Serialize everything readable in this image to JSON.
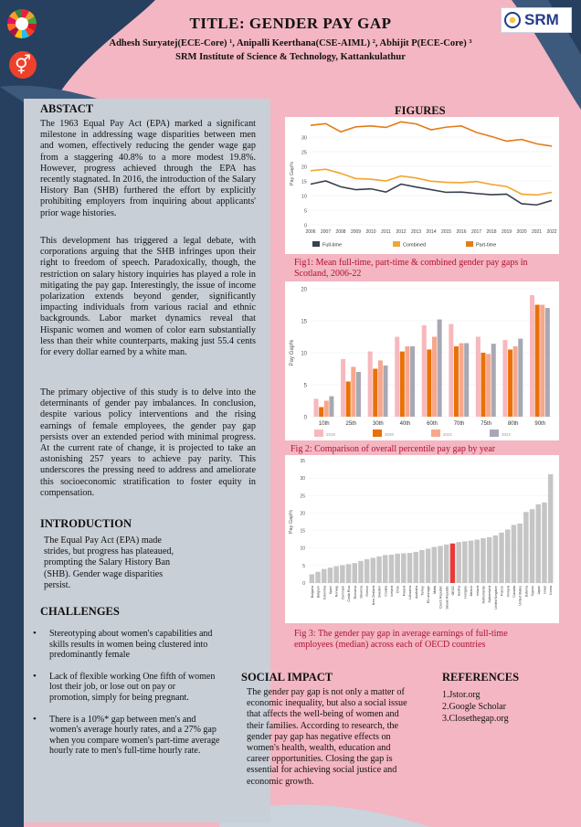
{
  "header": {
    "title": "TITLE: GENDER PAY GAP",
    "authors": "Adhesh Suryatej(ECE-Core) ¹, Anipalli Keerthana(CSE-AIML) ², Abhijit P(ECE-Core) ³",
    "institute": "SRM Institute of Science & Technology, Kattankulathur",
    "logo_text": "SRM",
    "sdg_symbol": "⚥"
  },
  "abstract": {
    "heading": "ABSTACT",
    "p1": "The 1963 Equal Pay Act (EPA) marked a significant milestone in addressing wage disparities between men and women, effectively reducing the gender wage gap from a staggering 40.8% to a more modest 19.8%. However, progress achieved through the EPA has recently stagnated. In 2016, the introduction of the Salary History Ban (SHB) furthered the effort by explicitly prohibiting employers from inquiring about applicants' prior wage histories.",
    "p2": "This development has triggered a legal debate, with corporations arguing that the SHB infringes upon their right to freedom of speech. Paradoxically, though, the restriction on salary history inquiries has played a role in mitigating the pay gap. Interestingly, the issue of income polarization extends beyond gender, significantly impacting individuals from various racial and ethnic backgrounds. Labor market dynamics reveal that Hispanic women and women of color earn substantially less than their white counterparts, making just 55.4 cents for every dollar earned by a white man.",
    "p3": "The primary objective of this study is to delve into the determinants of gender pay imbalances. In conclusion, despite various policy interventions and the rising earnings of female employees, the gender pay gap persists over an extended period with minimal progress. At the current rate of change, it is projected to take an astonishing 257 years to achieve pay parity. This underscores the pressing need to address and ameliorate this socioeconomic stratification to foster equity in compensation."
  },
  "introduction": {
    "heading": "INTRODUCTION",
    "text": "The Equal Pay Act (EPA) made strides, but progress has plateaued, prompting the Salary History Ban (SHB). Gender wage disparities persist."
  },
  "challenges": {
    "heading": "CHALLENGES",
    "items": [
      "Stereotyping about women's capabilities and skills results in women being clustered into predominantly female",
      "Lack of flexible working  One fifth of women lost their job, or lose out on pay or promotion, simply for being pregnant.",
      "There is a 10%* gap between men's and women's average hourly rates, and a 27% gap when you compare women's part-time average hourly rate to men's full-time hourly rate."
    ]
  },
  "figures": {
    "heading": "FIGURES",
    "fig1_caption": "Fig1: Mean full-time, part-time & combined gender pay gaps in Scotland, 2006-22",
    "fig2_caption": "Fig 2: Comparison of overall percentile pay gap by year",
    "fig3_caption": "Fig 3: The gender pay gap in average earnings of full-time employees (median) across each of OECD countries"
  },
  "social_impact": {
    "heading": "SOCIAL IMPACT",
    "text": "The gender pay gap is not only a matter of economic inequality, but also a social issue that affects the well-being of women and their families. According to research, the gender pay gap has negative effects on women's health, wealth, education and career opportunities. Closing the gap is essential for achieving social justice and economic growth."
  },
  "references": {
    "heading": "REFERENCES",
    "items": [
      "1.Jstor.org",
      "2.Google Scholar",
      "3.Closethegap.org"
    ]
  },
  "chart_data": [
    {
      "type": "line",
      "ylabel": "Pay Gap%",
      "x": [
        2006,
        2007,
        2008,
        2009,
        2010,
        2011,
        2012,
        2013,
        2014,
        2015,
        2016,
        2017,
        2018,
        2019,
        2020,
        2021,
        2022
      ],
      "ylim": [
        0,
        35
      ],
      "yticks": [
        0,
        5,
        10,
        15,
        20,
        25,
        30
      ],
      "series": [
        {
          "name": "Full-time",
          "color": "#3a4050",
          "values": [
            13.9,
            15.0,
            13.0,
            12.0,
            12.3,
            11.2,
            13.9,
            12.9,
            12.0,
            11.1,
            11.2,
            10.7,
            10.3,
            10.5,
            7.2,
            6.8,
            8.3
          ]
        },
        {
          "name": "Combined",
          "color": "#f3a630",
          "values": [
            18.5,
            19.0,
            17.6,
            15.8,
            15.6,
            15.0,
            16.7,
            16.0,
            14.9,
            14.5,
            14.4,
            14.8,
            13.8,
            13.1,
            10.5,
            10.2,
            11.1
          ]
        },
        {
          "name": "Part-time",
          "color": "#e37b1a",
          "values": [
            34.0,
            34.6,
            31.8,
            33.5,
            33.8,
            33.3,
            35.2,
            34.5,
            32.5,
            33.4,
            33.8,
            31.6,
            30.2,
            28.6,
            29.2,
            27.7,
            26.9
          ]
        }
      ]
    },
    {
      "type": "bar",
      "ylabel": "Pay Gap%",
      "categories": [
        "10th",
        "25th",
        "30th",
        "40th",
        "60th",
        "70th",
        "75th",
        "80th",
        "90th"
      ],
      "ylim": [
        0,
        20
      ],
      "yticks": [
        0,
        5,
        10,
        15,
        20
      ],
      "series": [
        {
          "name": "2019",
          "color": "#f7b8bd",
          "values": [
            2.8,
            9.0,
            10.2,
            12.5,
            14.3,
            14.5,
            12.5,
            12.0,
            19.0
          ]
        },
        {
          "name": "2020",
          "color": "#e8710a",
          "values": [
            1.5,
            5.5,
            7.5,
            10.2,
            10.5,
            11.0,
            10.0,
            10.5,
            17.5
          ]
        },
        {
          "name": "2021",
          "color": "#f7a88c",
          "values": [
            2.5,
            7.8,
            8.8,
            11.0,
            12.5,
            11.5,
            9.8,
            11.0,
            17.5
          ]
        },
        {
          "name": "2022",
          "color": "#a8a8b5",
          "values": [
            3.2,
            7.0,
            8.0,
            11.0,
            15.2,
            11.5,
            11.4,
            12.2,
            17.0
          ]
        }
      ]
    },
    {
      "type": "bar",
      "ylabel": "Pay Gap%",
      "ylim": [
        0,
        35
      ],
      "yticks": [
        0,
        5,
        10,
        15,
        20,
        25,
        30,
        35
      ],
      "highlight": "OECD",
      "bar_color": "#c5c5c5",
      "highlight_color": "#e53b3b",
      "categories": [
        "Bulgaria",
        "Belgium",
        "Colombia",
        "Spain",
        "Norway",
        "Denmark",
        "Costa Rica",
        "Romania",
        "Slovenia",
        "Greece",
        "New Zealand",
        "Sweden",
        "Croatia",
        "Iceland",
        "Chile",
        "Poland",
        "Lithuania",
        "Australia",
        "Turkey",
        "EU average",
        "Malta",
        "Czech Republic",
        "Slovak Republic",
        "OECD",
        "Austria",
        "Hungary",
        "Mexico",
        "Ireland",
        "Netherlands",
        "Switzerland",
        "United Kingdom",
        "France",
        "Finland",
        "Canada",
        "United States",
        "Estonia",
        "Cyprus",
        "Japan",
        "Israel",
        "Korea"
      ],
      "values": [
        2.5,
        3.2,
        4.0,
        4.4,
        4.8,
        5.1,
        5.4,
        5.7,
        6.3,
        6.8,
        7.2,
        7.6,
        8.0,
        8.1,
        8.4,
        8.5,
        8.6,
        8.9,
        9.4,
        9.8,
        10.3,
        10.6,
        11.0,
        11.3,
        11.7,
        11.9,
        12.1,
        12.4,
        12.8,
        13.1,
        13.6,
        14.4,
        15.3,
        16.6,
        17.0,
        20.3,
        21.1,
        22.5,
        23.0,
        31.1
      ]
    }
  ]
}
